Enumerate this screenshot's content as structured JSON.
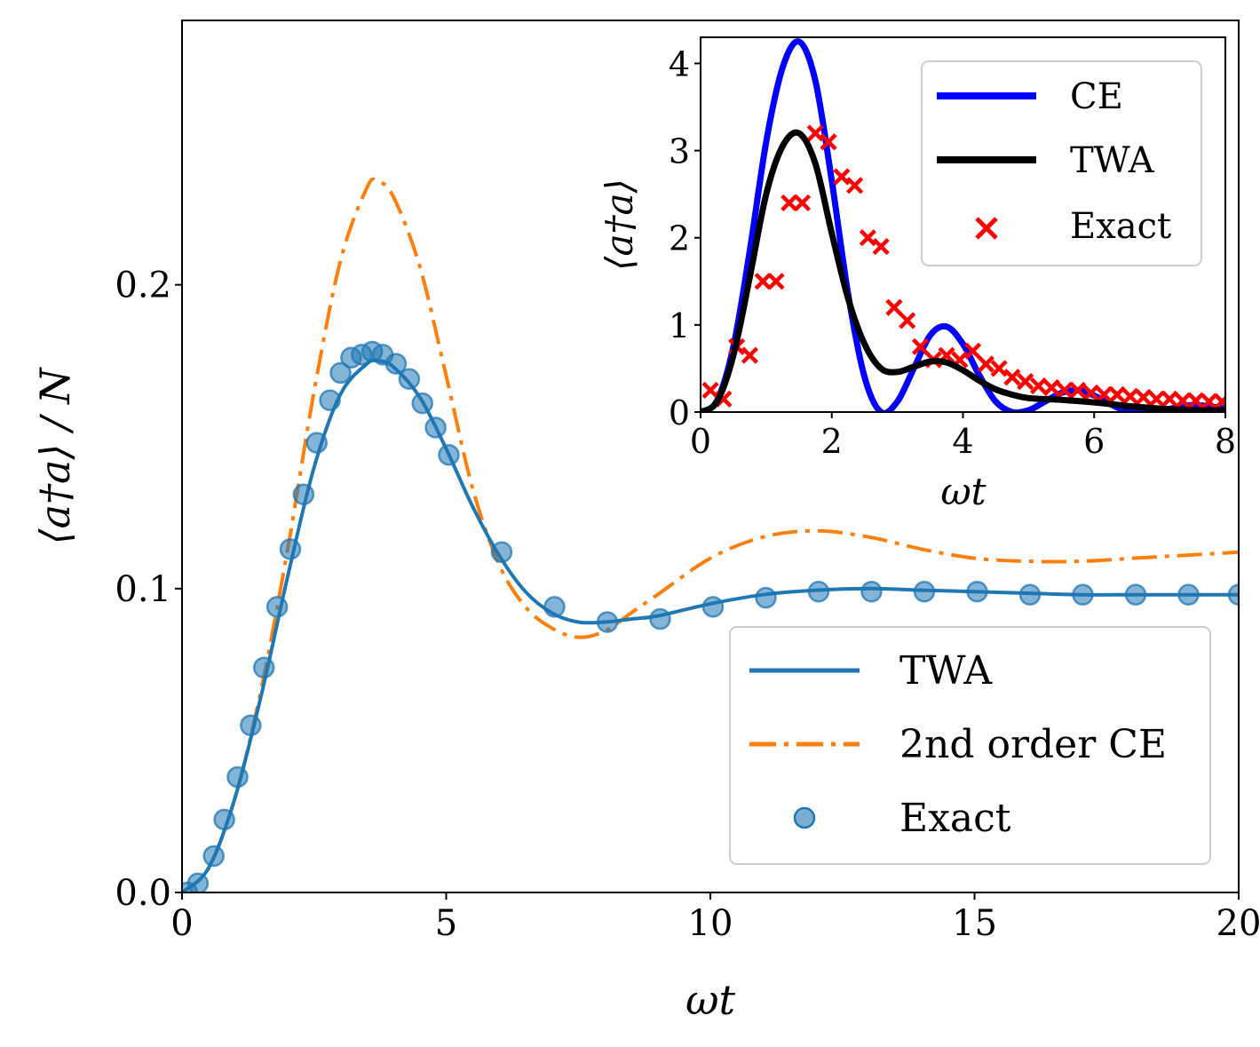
{
  "chart_data": [
    {
      "type": "line",
      "panel": "main",
      "xlabel": "ωt",
      "ylabel": "⟨a†a⟩ / N",
      "xlim": [
        0,
        20
      ],
      "ylim": [
        0,
        0.287
      ],
      "xticks": [
        0,
        5,
        10,
        15,
        20
      ],
      "xtick_labels": [
        "0",
        "5",
        "10",
        "15",
        "20"
      ],
      "yticks": [
        0,
        0.1,
        0.2
      ],
      "ytick_labels": [
        "0.0",
        "0.1",
        "0.2"
      ],
      "grid": false,
      "legend_position": "lower-right",
      "series": [
        {
          "name": "TWA",
          "style": "solid",
          "color": "#1f77b4",
          "x": [
            0,
            0.5,
            1,
            1.5,
            2,
            2.5,
            3,
            3.5,
            3.7,
            4,
            4.5,
            5,
            5.5,
            6,
            6.5,
            7,
            7.5,
            8,
            8.5,
            9,
            10,
            11,
            12,
            13,
            14,
            15,
            16,
            17,
            18,
            19,
            20
          ],
          "y": [
            0,
            0.008,
            0.031,
            0.065,
            0.104,
            0.14,
            0.164,
            0.174,
            0.175,
            0.173,
            0.163,
            0.146,
            0.127,
            0.111,
            0.099,
            0.092,
            0.089,
            0.089,
            0.09,
            0.091,
            0.095,
            0.098,
            0.0995,
            0.1,
            0.0995,
            0.099,
            0.0985,
            0.098,
            0.098,
            0.098,
            0.098
          ]
        },
        {
          "name": "2nd order CE",
          "style": "dashdot",
          "color": "#ff7f0e",
          "x": [
            0,
            0.5,
            1,
            1.5,
            2,
            2.5,
            3,
            3.5,
            3.7,
            4,
            4.5,
            5,
            5.5,
            6,
            6.5,
            7,
            7.5,
            8,
            8.5,
            9,
            10,
            11,
            12,
            13,
            14,
            15,
            16,
            17,
            18,
            19,
            20
          ],
          "y": [
            0,
            0.008,
            0.031,
            0.067,
            0.113,
            0.165,
            0.208,
            0.232,
            0.234,
            0.229,
            0.206,
            0.17,
            0.133,
            0.108,
            0.094,
            0.087,
            0.084,
            0.086,
            0.092,
            0.098,
            0.11,
            0.117,
            0.119,
            0.117,
            0.113,
            0.11,
            0.109,
            0.109,
            0.11,
            0.111,
            0.112
          ]
        },
        {
          "name": "Exact",
          "style": "markers",
          "color": "#1f77b4",
          "x": [
            0.1,
            0.3,
            0.6,
            0.8,
            1.05,
            1.3,
            1.55,
            1.8,
            2.05,
            2.3,
            2.55,
            2.8,
            3.0,
            3.2,
            3.4,
            3.6,
            3.8,
            4.05,
            4.3,
            4.55,
            4.8,
            5.05,
            6.05,
            7.05,
            8.05,
            9.05,
            10.05,
            11.05,
            12.05,
            13.05,
            14.05,
            15.05,
            16.05,
            17.05,
            18.05,
            19.05,
            20.0
          ],
          "y": [
            0.0,
            0.003,
            0.012,
            0.024,
            0.038,
            0.055,
            0.074,
            0.094,
            0.113,
            0.131,
            0.148,
            0.162,
            0.171,
            0.176,
            0.177,
            0.178,
            0.177,
            0.174,
            0.169,
            0.161,
            0.153,
            0.144,
            0.112,
            0.094,
            0.089,
            0.09,
            0.094,
            0.097,
            0.099,
            0.099,
            0.099,
            0.099,
            0.098,
            0.098,
            0.098,
            0.098,
            0.098
          ]
        }
      ]
    },
    {
      "type": "line",
      "panel": "inset",
      "xlabel": "ωt",
      "ylabel": "⟨a†a⟩",
      "xlim": [
        0,
        8
      ],
      "ylim": [
        0,
        4.3
      ],
      "xticks": [
        0,
        2,
        4,
        6,
        8
      ],
      "xtick_labels": [
        "0",
        "2",
        "4",
        "6",
        "8"
      ],
      "yticks": [
        0,
        1,
        2,
        3,
        4
      ],
      "ytick_labels": [
        "0",
        "1",
        "2",
        "3",
        "4"
      ],
      "grid": false,
      "legend_position": "upper-right",
      "series": [
        {
          "name": "CE",
          "style": "solid",
          "color": "#0000ff",
          "x": [
            0,
            0.25,
            0.5,
            0.75,
            1.0,
            1.25,
            1.5,
            1.75,
            2.0,
            2.25,
            2.5,
            2.75,
            3.0,
            3.25,
            3.5,
            3.75,
            4.0,
            4.25,
            4.5,
            4.75,
            5.0,
            5.25,
            5.5,
            5.75,
            6.0,
            6.25,
            6.5,
            7.0,
            7.5,
            8.0
          ],
          "y": [
            0,
            0.13,
            0.75,
            1.85,
            3.1,
            3.95,
            4.25,
            3.8,
            2.65,
            1.35,
            0.4,
            0.0,
            0.12,
            0.5,
            0.88,
            0.98,
            0.78,
            0.42,
            0.12,
            0.0,
            0.02,
            0.12,
            0.22,
            0.25,
            0.19,
            0.09,
            0.02,
            0.02,
            0.08,
            0.04
          ]
        },
        {
          "name": "TWA",
          "style": "solid",
          "color": "#000000",
          "x": [
            0,
            0.25,
            0.5,
            0.75,
            1.0,
            1.25,
            1.5,
            1.75,
            2.0,
            2.25,
            2.5,
            2.75,
            3.0,
            3.25,
            3.5,
            3.75,
            4.0,
            4.25,
            4.5,
            4.75,
            5.0,
            5.5,
            6.0,
            6.5,
            7.0,
            7.5,
            8.0
          ],
          "y": [
            0,
            0.12,
            0.65,
            1.55,
            2.5,
            3.05,
            3.2,
            2.85,
            2.05,
            1.3,
            0.78,
            0.5,
            0.46,
            0.52,
            0.58,
            0.57,
            0.48,
            0.36,
            0.26,
            0.2,
            0.16,
            0.14,
            0.11,
            0.07,
            0.04,
            0.02,
            0.02
          ]
        },
        {
          "name": "Exact",
          "style": "markers",
          "color": "#ff0000",
          "x": [
            0.15,
            0.35,
            0.55,
            0.75,
            0.95,
            1.15,
            1.35,
            1.55,
            1.75,
            1.95,
            2.15,
            2.35,
            2.55,
            2.75,
            2.95,
            3.15,
            3.35,
            3.55,
            3.75,
            3.95,
            4.15,
            4.35,
            4.55,
            4.75,
            4.95,
            5.15,
            5.35,
            5.55,
            5.75,
            5.95,
            6.15,
            6.35,
            6.55,
            6.75,
            6.95,
            7.15,
            7.35,
            7.55,
            7.75,
            7.95
          ],
          "y": [
            0.25,
            0.15,
            0.75,
            0.65,
            1.5,
            1.5,
            2.4,
            2.4,
            3.2,
            3.1,
            2.7,
            2.6,
            2.0,
            1.9,
            1.2,
            1.05,
            0.75,
            0.6,
            0.65,
            0.6,
            0.7,
            0.55,
            0.5,
            0.4,
            0.35,
            0.3,
            0.28,
            0.25,
            0.25,
            0.22,
            0.2,
            0.2,
            0.18,
            0.17,
            0.15,
            0.15,
            0.13,
            0.13,
            0.12,
            0.12
          ]
        }
      ]
    }
  ]
}
